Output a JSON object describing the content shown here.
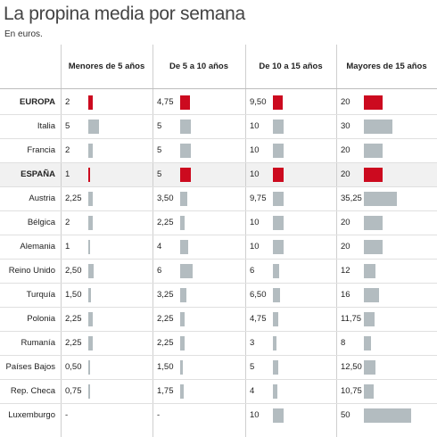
{
  "title": "La propina media por semana",
  "subtitle": "En euros.",
  "colors": {
    "highlight": "#cc0a1f",
    "normal": "#b3bcc0"
  },
  "chart_data": {
    "type": "table",
    "columns": [
      "Menores de 5 años",
      "De 5 a 10 años",
      "De 10 a 15 años",
      "Mayores de 15 años"
    ],
    "rows": [
      {
        "country": "EUROPA",
        "highlight": true,
        "labels": [
          "2",
          "4,75",
          "9,50",
          "20"
        ],
        "values": [
          2,
          4.75,
          9.5,
          20
        ]
      },
      {
        "country": "Italia",
        "highlight": false,
        "labels": [
          "5",
          "5",
          "10",
          "30"
        ],
        "values": [
          5,
          5,
          10,
          30
        ]
      },
      {
        "country": "Francia",
        "highlight": false,
        "labels": [
          "2",
          "5",
          "10",
          "20"
        ],
        "values": [
          2,
          5,
          10,
          20
        ]
      },
      {
        "country": "ESPAÑA",
        "highlight": true,
        "labels": [
          "1",
          "5",
          "10",
          "20"
        ],
        "values": [
          1,
          5,
          10,
          20
        ]
      },
      {
        "country": "Austria",
        "highlight": false,
        "labels": [
          "2,25",
          "3,50",
          "9,75",
          "35,25"
        ],
        "values": [
          2.25,
          3.5,
          9.75,
          35.25
        ]
      },
      {
        "country": "Bélgica",
        "highlight": false,
        "labels": [
          "2",
          "2,25",
          "10",
          "20"
        ],
        "values": [
          2,
          2.25,
          10,
          20
        ]
      },
      {
        "country": "Alemania",
        "highlight": false,
        "labels": [
          "1",
          "4",
          "10",
          "20"
        ],
        "values": [
          1,
          4,
          10,
          20
        ]
      },
      {
        "country": "Reino Unido",
        "highlight": false,
        "labels": [
          "2,50",
          "6",
          "6",
          "12"
        ],
        "values": [
          2.5,
          6,
          6,
          12
        ]
      },
      {
        "country": "Turquía",
        "highlight": false,
        "labels": [
          "1,50",
          "3,25",
          "6,50",
          "16"
        ],
        "values": [
          1.5,
          3.25,
          6.5,
          16
        ]
      },
      {
        "country": "Polonia",
        "highlight": false,
        "labels": [
          "2,25",
          "2,25",
          "4,75",
          "11,75"
        ],
        "values": [
          2.25,
          2.25,
          4.75,
          11.75
        ]
      },
      {
        "country": "Rumanía",
        "highlight": false,
        "labels": [
          "2,25",
          "2,25",
          "3",
          "8"
        ],
        "values": [
          2.25,
          2.25,
          3,
          8
        ]
      },
      {
        "country": "Países Bajos",
        "highlight": false,
        "labels": [
          "0,50",
          "1,50",
          "5",
          "12,50"
        ],
        "values": [
          0.5,
          1.5,
          5,
          12.5
        ]
      },
      {
        "country": "Rep. Checa",
        "highlight": false,
        "labels": [
          "0,75",
          "1,75",
          "4",
          "10,75"
        ],
        "values": [
          0.75,
          1.75,
          4,
          10.75
        ]
      },
      {
        "country": "Luxemburgo",
        "highlight": false,
        "labels": [
          "-",
          "-",
          "10",
          "50"
        ],
        "values": [
          null,
          null,
          10,
          50
        ]
      }
    ]
  }
}
